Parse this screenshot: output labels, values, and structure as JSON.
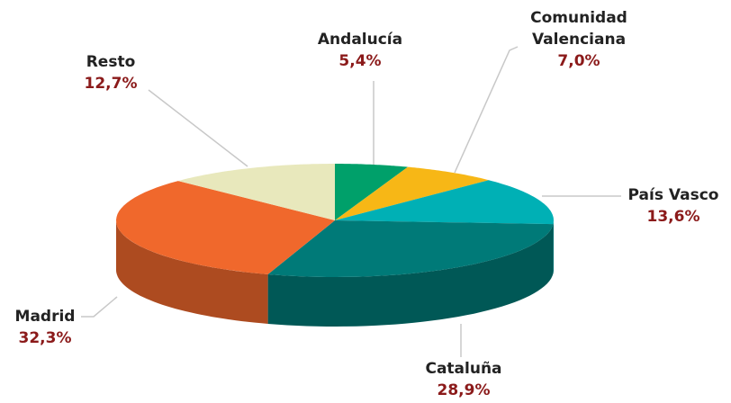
{
  "chart_data": {
    "type": "pie",
    "categories": [
      "Andalucía",
      "Comunidad Valenciana",
      "País Vasco",
      "Cataluña",
      "Madrid",
      "Resto"
    ],
    "values": [
      5.4,
      7.0,
      13.6,
      28.9,
      32.3,
      12.7
    ],
    "value_labels": [
      "5,4%",
      "7,0%",
      "13,6%",
      "28,9%",
      "32,3%",
      "12,7%"
    ],
    "colors": [
      "#00a06a",
      "#f7b716",
      "#00b0b5",
      "#007a78",
      "#f0682c",
      "#e8e8bc"
    ]
  }
}
